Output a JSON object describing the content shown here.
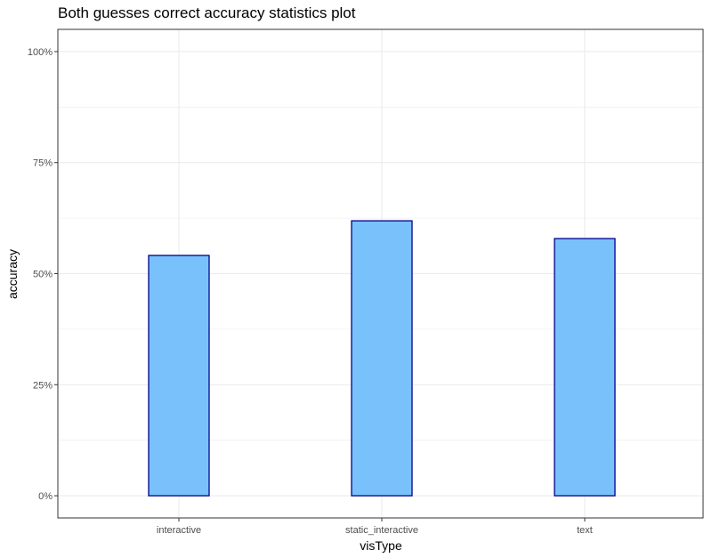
{
  "chart_data": {
    "type": "bar",
    "title": "Both guesses correct accuracy statistics plot",
    "xlabel": "visType",
    "ylabel": "accuracy",
    "categories": [
      "interactive",
      "static_interactive",
      "text"
    ],
    "values": [
      0.541,
      0.619,
      0.579
    ],
    "ylim": [
      -0.05,
      1.05
    ],
    "yticks": [
      0,
      0.25,
      0.5,
      0.75,
      1
    ],
    "ytick_labels": [
      "0%",
      "25%",
      "50%",
      "75%",
      "100%"
    ],
    "grid": true,
    "legend": "none",
    "colors": {
      "bar_fill": "#79c1fb",
      "bar_stroke": "#00008b",
      "grid": "#ebebeb",
      "panel_border": "#333333"
    }
  }
}
